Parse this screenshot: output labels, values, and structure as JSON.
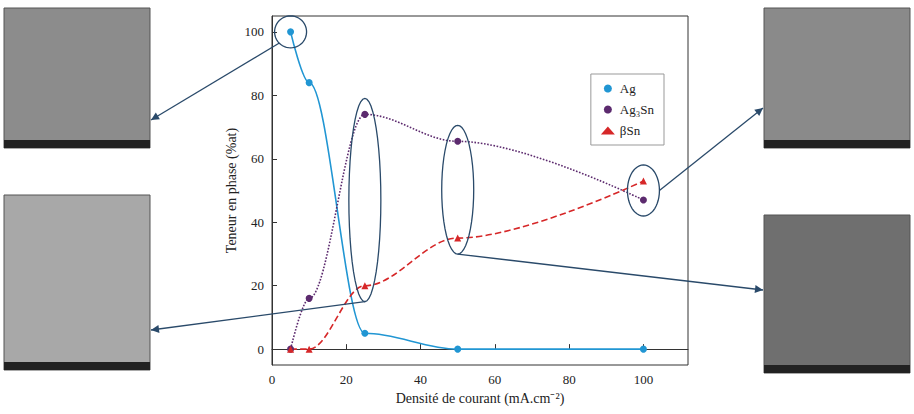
{
  "chart_data": {
    "type": "line",
    "x_label": "Densité de courant (mA.cm⁻²)",
    "y_label": "Teneur en phase (%at)",
    "x": [
      5,
      10,
      25,
      50,
      100
    ],
    "series": [
      {
        "name": "Ag",
        "color": "#2196d3",
        "marker": "circle",
        "line_style": "solid",
        "values": [
          100,
          84,
          5,
          0,
          0
        ]
      },
      {
        "name": "Ag₃Sn",
        "color": "#5c2a6e",
        "marker": "circle",
        "line_style": "dotted",
        "values": [
          0,
          16,
          74,
          65.5,
          47
        ]
      },
      {
        "name": "βSn",
        "color": "#d62728",
        "marker": "triangle",
        "line_style": "dashed",
        "values": [
          0,
          0,
          20,
          35,
          53
        ]
      }
    ],
    "xlim": [
      0,
      112
    ],
    "xticks": [
      0,
      20,
      40,
      60,
      80,
      100
    ],
    "ylim": [
      -5,
      105
    ],
    "yticks": [
      0,
      20,
      40,
      60,
      80,
      100
    ],
    "legend": "upper right",
    "grid": false
  }
}
